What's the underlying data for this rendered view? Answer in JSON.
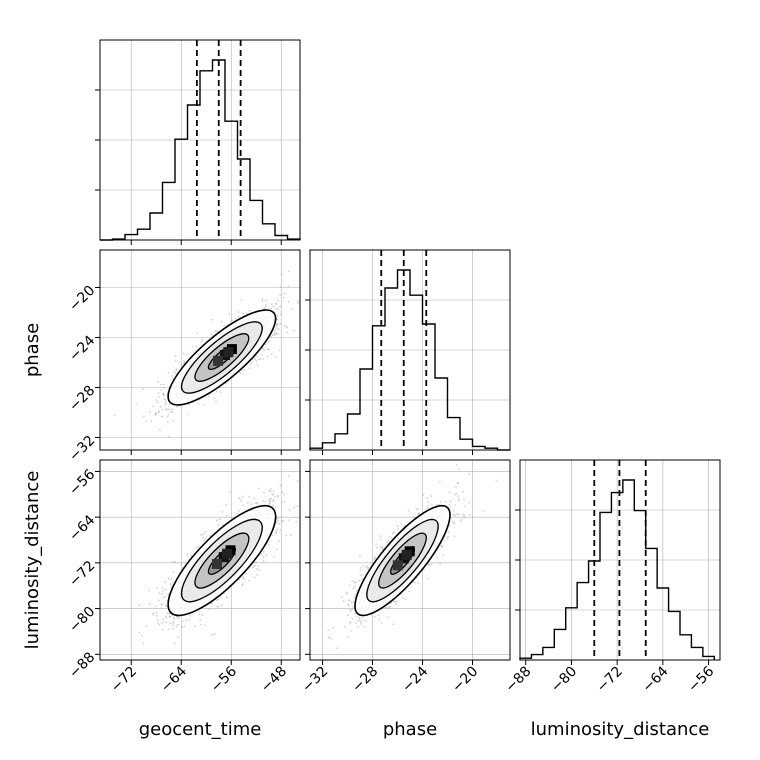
{
  "chart_data": {
    "type": "corner",
    "parameters": [
      {
        "name": "geocent_time",
        "ticks": [
          -72,
          -64,
          -56,
          -48
        ],
        "tick_labels": [
          "−72",
          "−64",
          "−56",
          "−48"
        ],
        "range": [
          -77,
          -45
        ],
        "quantiles": [
          -61.5,
          -58.0,
          -54.5
        ],
        "hist_edges": [
          -77,
          -75,
          -73,
          -71,
          -69,
          -67,
          -65,
          -63,
          -61,
          -59,
          -57,
          -55,
          -53,
          -51,
          -49,
          -47,
          -45
        ],
        "hist_counts": [
          0.0,
          0.005,
          0.03,
          0.06,
          0.15,
          0.32,
          0.56,
          0.75,
          0.94,
          1.0,
          0.66,
          0.45,
          0.22,
          0.09,
          0.025,
          0.005
        ]
      },
      {
        "name": "phase",
        "ticks": [
          -32,
          -28,
          -24,
          -20
        ],
        "tick_labels": [
          "−32",
          "−28",
          "−24",
          "−20"
        ],
        "range": [
          -33,
          -17
        ],
        "quantiles": [
          -27.3,
          -25.5,
          -23.7
        ],
        "hist_edges": [
          -33,
          -32,
          -31,
          -30,
          -29,
          -28,
          -27,
          -26,
          -25,
          -24,
          -23,
          -22,
          -21,
          -20,
          -19,
          -18,
          -17
        ],
        "hist_counts": [
          0.01,
          0.04,
          0.09,
          0.2,
          0.45,
          0.69,
          0.9,
          1.0,
          0.86,
          0.7,
          0.4,
          0.18,
          0.06,
          0.02,
          0.01,
          0.0
        ]
      },
      {
        "name": "luminosity_distance",
        "ticks": [
          -88,
          -80,
          -72,
          -64,
          -56
        ],
        "tick_labels": [
          "−88",
          "−80",
          "−72",
          "−64",
          "−56"
        ],
        "range": [
          -89,
          -54
        ],
        "quantiles": [
          -76.0,
          -71.6,
          -67.0
        ],
        "hist_edges": [
          -89,
          -87,
          -85,
          -83,
          -81,
          -79,
          -77,
          -75,
          -73,
          -71,
          -69,
          -67,
          -65,
          -63,
          -61,
          -59,
          -57,
          -55
        ],
        "hist_counts": [
          0.01,
          0.03,
          0.07,
          0.17,
          0.29,
          0.43,
          0.55,
          0.82,
          0.93,
          1.0,
          0.83,
          0.62,
          0.4,
          0.27,
          0.14,
          0.07,
          0.02
        ]
      }
    ],
    "pairs": [
      {
        "x_index": 0,
        "y_index": 1,
        "mean": [
          -57.5,
          -25.6
        ],
        "sd": [
          4.3,
          1.9
        ],
        "rho": 0.82,
        "peak": [
          -57.0,
          -25.4
        ],
        "contours": [
          0.5,
          1.0,
          1.5,
          2.0
        ]
      },
      {
        "x_index": 0,
        "y_index": 2,
        "mean": [
          -57.5,
          -71.6
        ],
        "sd": [
          4.3,
          4.8
        ],
        "rho": 0.8,
        "peak": [
          -57.2,
          -71.0
        ],
        "contours": [
          0.5,
          1.0,
          1.5,
          2.0
        ]
      },
      {
        "x_index": 1,
        "y_index": 2,
        "mean": [
          -25.6,
          -71.6
        ],
        "sd": [
          1.9,
          4.8
        ],
        "rho": 0.83,
        "peak": [
          -25.5,
          -71.2
        ],
        "contours": [
          0.5,
          1.0,
          1.5,
          2.0
        ]
      }
    ],
    "grid": true,
    "colors": {
      "hist": "#000000",
      "points": "#a6a6a6",
      "contour": "#000000",
      "grid": "#b0b0b0"
    }
  }
}
